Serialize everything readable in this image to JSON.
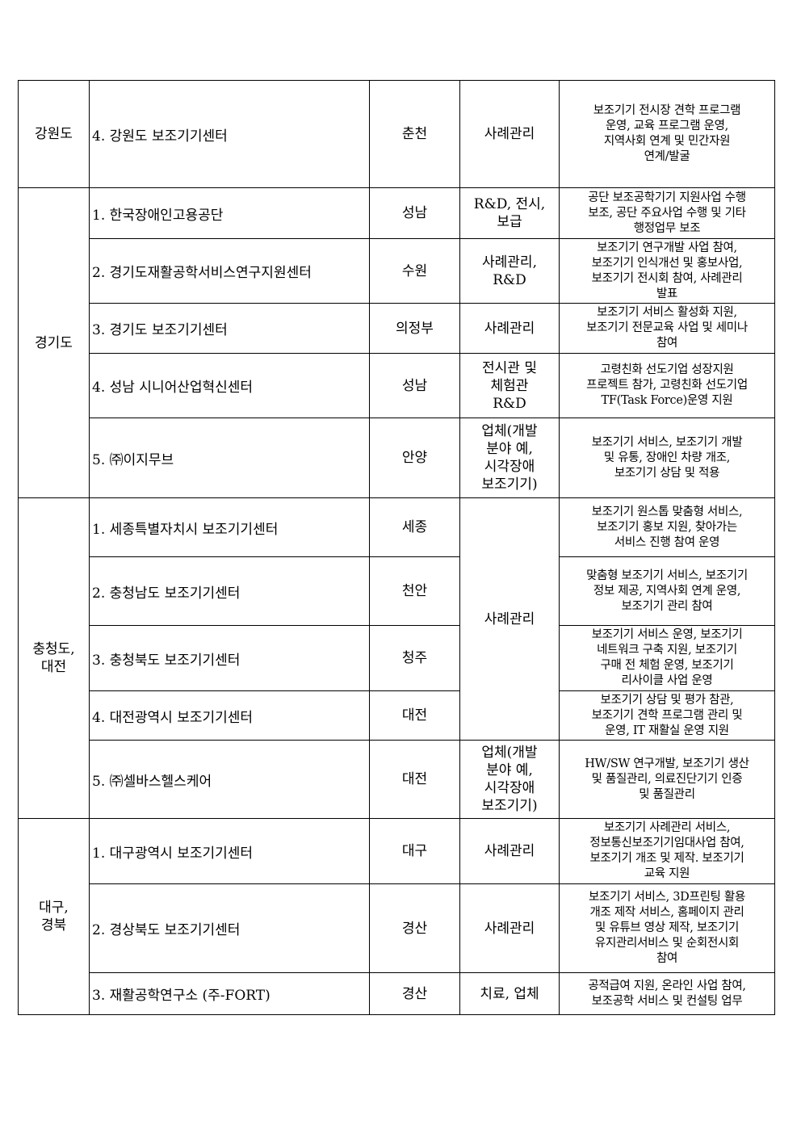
{
  "table": {
    "regions": [
      {
        "label": "강원도",
        "rows": [
          {
            "name": "4. 강원도 보조기기센터",
            "city": "춘천",
            "category": "사례관리",
            "desc": "보조기기 전시장 견학 프로그램\n운영, 교육 프로그램 운영,\n지역사회 연계 및 민간자원\n연계/발굴"
          }
        ]
      },
      {
        "label": "경기도",
        "rows": [
          {
            "name": "1. 한국장애인고용공단",
            "city": "성남",
            "category": "R&D, 전시,\n보급",
            "desc": "공단 보조공학기기 지원사업 수행\n보조, 공단 주요사업 수행 및 기타\n행정업무 보조"
          },
          {
            "name": "2. 경기도재활공학서비스연구지원센터",
            "city": "수원",
            "category": "사례관리,\nR&D",
            "desc": "보조기기 연구개발 사업 참여,\n보조기기 인식개선 및 홍보사업,\n보조기기 전시회 참여, 사례관리\n발표"
          },
          {
            "name": "3. 경기도 보조기기센터",
            "city": "의정부",
            "category": "사례관리",
            "desc": "보조기기 서비스 활성화 지원,\n보조기기 전문교육 사업 및 세미나\n참여"
          },
          {
            "name": "4. 성남 시니어산업혁신센터",
            "city": "성남",
            "category": "전시관 및\n체험관\nR&D",
            "desc": "고령친화 선도기업 성장지원\n프로젝트 참가, 고령친화 선도기업\nTF(Task Force)운영 지원"
          },
          {
            "name": "5. ㈜이지무브",
            "city": "안양",
            "category": "업체(개발\n분야 예,\n시각장애\n보조기기)",
            "desc": "보조기기 서비스, 보조기기 개발\n및 유통, 장애인 차량 개조,\n보조기기 상담 및 적용"
          }
        ]
      },
      {
        "label": "충청도,\n대전",
        "shared_category": "사례관리",
        "rows": [
          {
            "name": "1. 세종특별자치시 보조기기센터",
            "city": "세종",
            "desc": "보조기기 원스톱 맞춤형 서비스,\n보조기기 홍보 지원, 찾아가는\n서비스 진행 참여 운영"
          },
          {
            "name": "2. 충청남도 보조기기센터",
            "city": "천안",
            "desc": "맞춤형 보조기기 서비스, 보조기기\n정보 제공, 지역사회 연계 운영,\n보조기기 관리 참여"
          },
          {
            "name": "3. 충청북도 보조기기센터",
            "city": "청주",
            "desc": "보조기기 서비스 운영, 보조기기\n네트워크 구축 지원, 보조기기\n구매 전 체험 운영, 보조기기\n리사이클 사업 운영"
          },
          {
            "name": "4. 대전광역시 보조기기센터",
            "city": "대전",
            "desc": "보조기기 상담 및 평가 참관,\n보조기기 견학 프로그램 관리 및\n운영, IT 재활실 운영 지원"
          },
          {
            "name": "5. ㈜셀바스헬스케어",
            "city": "대전",
            "category": "업체(개발\n분야 예,\n시각장애\n보조기기)",
            "desc": "HW/SW 연구개발, 보조기기 생산\n및 품질관리, 의료진단기기 인증\n및 품질관리"
          }
        ]
      },
      {
        "label": "대구,\n경북",
        "rows": [
          {
            "name": "1. 대구광역시 보조기기센터",
            "city": "대구",
            "category": "사례관리",
            "desc": "보조기기 사례관리 서비스,\n정보통신보조기기임대사업 참여,\n보조기기 개조 및 제작. 보조기기\n교육 지원"
          },
          {
            "name": "2. 경상북도 보조기기센터",
            "city": "경산",
            "category": "사례관리",
            "desc": "보조기기 서비스, 3D프린팅 활용\n개조 제작 서비스, 홈페이지 관리\n및 유튜브 영상 제작, 보조기기\n유지관리서비스 및 순회전시회\n참여"
          },
          {
            "name": "3. 재활공학연구소 (주-FORT)",
            "city": "경산",
            "category": "치료, 업체",
            "desc": "공적급여 지원, 온라인 사업 참여,\n보조공학 서비스 및 컨설팅 업무"
          }
        ]
      }
    ]
  }
}
